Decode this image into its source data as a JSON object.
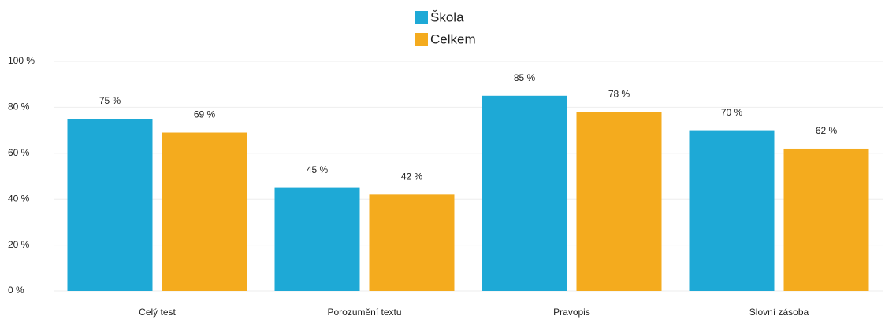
{
  "chart_data": {
    "type": "bar",
    "categories": [
      "Celý test",
      "Porozumění textu",
      "Pravopis",
      "Slovní zásoba"
    ],
    "series": [
      {
        "name": "Škola",
        "color": "#1ea9d6",
        "values": [
          75,
          45,
          85,
          70
        ],
        "value_labels": [
          "75 %",
          "45 %",
          "85 %",
          "70 %"
        ]
      },
      {
        "name": "Celkem",
        "color": "#f4ab1e",
        "values": [
          69,
          42,
          78,
          62
        ],
        "value_labels": [
          "69 %",
          "42 %",
          "78 %",
          "62 %"
        ]
      }
    ],
    "ylim": [
      0,
      100
    ],
    "yticks": [
      {
        "value": 0,
        "label": "0 %"
      },
      {
        "value": 20,
        "label": "20 %"
      },
      {
        "value": 40,
        "label": "40 %"
      },
      {
        "value": 60,
        "label": "60 %"
      },
      {
        "value": 80,
        "label": "80 %"
      },
      {
        "value": 100,
        "label": "100 %"
      }
    ],
    "grid": true
  }
}
